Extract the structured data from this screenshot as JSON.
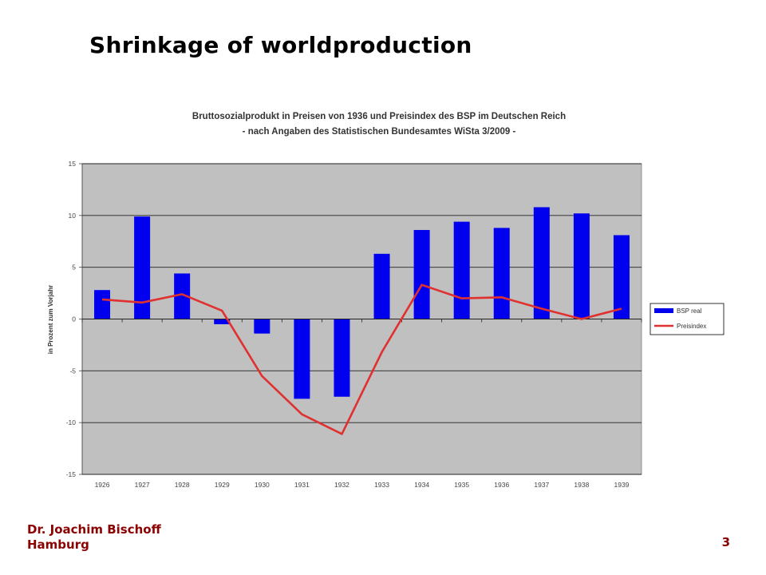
{
  "slide": {
    "title": "Shrinkage of worldproduction",
    "author_line1": "Dr. Joachim Bischoff",
    "author_line2": "Hamburg",
    "page_number": "3"
  },
  "colors": {
    "slide_title": "#000000",
    "footer": "#8b0000",
    "plot_background": "#c0c0c0",
    "bar": "#0000ee",
    "line": "#e03030"
  },
  "chart_data": {
    "type": "bar",
    "title_line1": "Bruttosozialprodukt in Preisen von 1936 und Preisindex des BSP im Deutschen Reich",
    "title_line2": "- nach Angaben des Statistischen Bundesamtes WiSta 3/2009 -",
    "ylabel": "in Prozent zum Vorjahr",
    "xlabel": "",
    "categories": [
      "1926",
      "1927",
      "1928",
      "1929",
      "1930",
      "1931",
      "1932",
      "1933",
      "1934",
      "1935",
      "1936",
      "1937",
      "1938",
      "1939"
    ],
    "ylim": [
      -15,
      15
    ],
    "yticks": [
      15,
      10,
      5,
      0,
      -5,
      -10,
      -15
    ],
    "grid": true,
    "legend_position": "right",
    "series": [
      {
        "name": "BSP real",
        "kind": "bar",
        "values": [
          2.8,
          9.9,
          4.4,
          -0.5,
          -1.4,
          -7.7,
          -7.5,
          6.3,
          8.6,
          9.4,
          8.8,
          10.8,
          10.2,
          8.1
        ]
      },
      {
        "name": "Preisindex",
        "kind": "line",
        "values": [
          1.9,
          1.6,
          2.4,
          0.8,
          -5.5,
          -9.2,
          -11.1,
          -3.2,
          3.3,
          2.0,
          2.1,
          1.0,
          0.0,
          1.0
        ]
      }
    ]
  }
}
